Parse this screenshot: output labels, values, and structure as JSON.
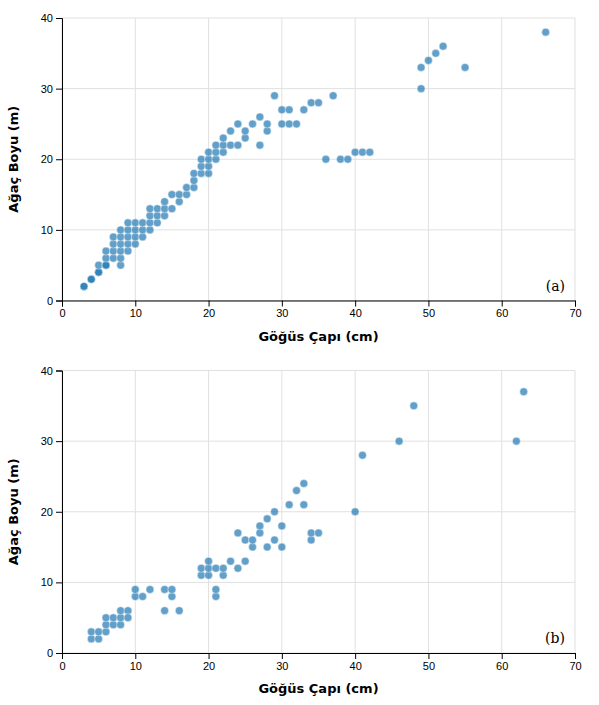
{
  "chart_data": [
    {
      "type": "scatter",
      "x": [
        3,
        3,
        4,
        4,
        5,
        5,
        5,
        6,
        6,
        6,
        6,
        7,
        7,
        7,
        7,
        8,
        8,
        8,
        8,
        8,
        8,
        9,
        9,
        9,
        9,
        9,
        10,
        10,
        10,
        10,
        11,
        11,
        11,
        12,
        12,
        12,
        12,
        13,
        13,
        13,
        14,
        14,
        14,
        15,
        15,
        16,
        16,
        17,
        17,
        18,
        18,
        18,
        19,
        19,
        19,
        20,
        20,
        20,
        20,
        21,
        21,
        21,
        22,
        22,
        22,
        23,
        23,
        24,
        24,
        25,
        25,
        26,
        27,
        27,
        28,
        28,
        29,
        30,
        30,
        31,
        31,
        32,
        33,
        34,
        35,
        36,
        37,
        38,
        39,
        40,
        41,
        42,
        49,
        49,
        50,
        51,
        52,
        55,
        66
      ],
      "values": [
        2,
        2,
        3,
        3,
        4,
        4,
        5,
        5,
        5,
        6,
        7,
        6,
        7,
        8,
        9,
        5,
        6,
        7,
        8,
        9,
        10,
        7,
        8,
        9,
        10,
        11,
        8,
        9,
        10,
        11,
        9,
        10,
        11,
        10,
        11,
        12,
        13,
        11,
        12,
        13,
        12,
        13,
        14,
        13,
        15,
        14,
        15,
        15,
        16,
        16,
        17,
        18,
        18,
        19,
        20,
        18,
        19,
        20,
        21,
        20,
        21,
        22,
        21,
        22,
        23,
        22,
        24,
        22,
        25,
        23,
        24,
        25,
        22,
        26,
        24,
        25,
        29,
        25,
        27,
        25,
        27,
        25,
        27,
        28,
        28,
        20,
        29,
        20,
        20,
        21,
        21,
        21,
        30,
        33,
        34,
        35,
        36,
        33,
        38
      ],
      "xlabel": "Göğüs Çapı (cm)",
      "ylabel": "Ağaç Boyu (m)",
      "annotation": "(a)",
      "xlim": [
        0,
        70
      ],
      "ylim": [
        0,
        40
      ],
      "xticks": [
        0,
        10,
        20,
        30,
        40,
        50,
        60,
        70
      ],
      "yticks": [
        0,
        10,
        20,
        30,
        40
      ],
      "grid": true
    },
    {
      "type": "scatter",
      "x": [
        4,
        4,
        5,
        5,
        6,
        6,
        6,
        7,
        7,
        8,
        8,
        8,
        9,
        9,
        10,
        10,
        11,
        12,
        14,
        14,
        15,
        15,
        16,
        19,
        19,
        20,
        20,
        20,
        21,
        21,
        21,
        22,
        22,
        23,
        24,
        24,
        25,
        25,
        26,
        26,
        27,
        27,
        28,
        28,
        29,
        29,
        30,
        30,
        31,
        32,
        33,
        33,
        34,
        34,
        35,
        40,
        41,
        46,
        48,
        62,
        63
      ],
      "values": [
        2,
        3,
        2,
        3,
        3,
        4,
        5,
        4,
        5,
        4,
        5,
        6,
        6,
        5,
        8,
        9,
        8,
        9,
        6,
        9,
        8,
        9,
        6,
        11,
        12,
        11,
        12,
        13,
        8,
        9,
        12,
        11,
        12,
        13,
        12,
        17,
        13,
        16,
        15,
        16,
        17,
        18,
        15,
        19,
        20,
        16,
        15,
        18,
        21,
        23,
        21,
        24,
        16,
        17,
        17,
        20,
        28,
        30,
        35,
        30,
        37
      ],
      "xlabel": "Göğüs Çapı (cm)",
      "ylabel": "Ağaç Boyu (m)",
      "annotation": "(b)",
      "xlim": [
        0,
        70
      ],
      "ylim": [
        0,
        40
      ],
      "xticks": [
        0,
        10,
        20,
        30,
        40,
        50,
        60,
        70
      ],
      "yticks": [
        0,
        10,
        20,
        30,
        40
      ],
      "grid": true
    }
  ]
}
